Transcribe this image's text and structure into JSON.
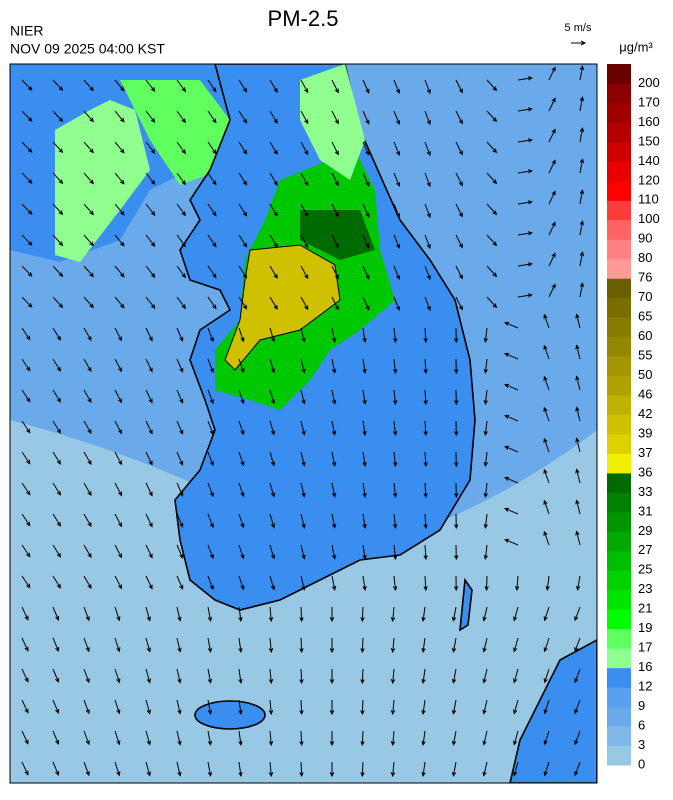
{
  "header": {
    "title": "PM-2.5",
    "source": "NIER",
    "datetime": "NOV 09 2025 04:00 KST",
    "wind_scale": "5 m/s",
    "unit": "μg/m³"
  },
  "legend": {
    "levels": [
      0,
      3,
      6,
      9,
      12,
      16,
      17,
      19,
      21,
      23,
      25,
      27,
      29,
      31,
      33,
      36,
      37,
      39,
      42,
      46,
      50,
      55,
      60,
      65,
      70,
      76,
      80,
      90,
      100,
      110,
      120,
      140,
      150,
      160,
      170,
      200
    ],
    "colors": [
      "#98c8e4",
      "#80b8e8",
      "#6aaaea",
      "#5aa0f0",
      "#3a8ef0",
      "#90ff90",
      "#60ff60",
      "#00ff00",
      "#00e600",
      "#00d200",
      "#00be00",
      "#00aa00",
      "#009600",
      "#008200",
      "#006b00",
      "#f0f000",
      "#dfd000",
      "#cfc000",
      "#c0b200",
      "#b0a200",
      "#a39600",
      "#948800",
      "#877c00",
      "#7a6e00",
      "#6b6000",
      "#ff9a9a",
      "#ff8080",
      "#ff6464",
      "#ff3c3c",
      "#ff0000",
      "#e80000",
      "#d00000",
      "#b40000",
      "#a00000",
      "#8b0000",
      "#6b0000"
    ]
  }
}
